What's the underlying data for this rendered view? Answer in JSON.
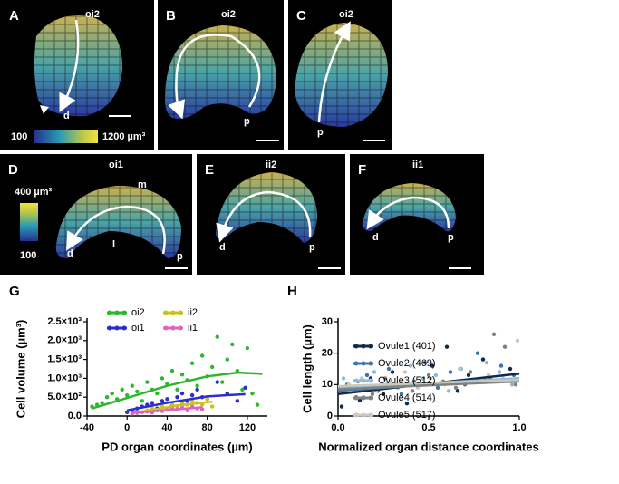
{
  "panels": {
    "A": {
      "letter": "A",
      "tissue": "oi2",
      "end": "d",
      "scale_min": "100",
      "scale_max": "1200 µm³"
    },
    "B": {
      "letter": "B",
      "tissue": "oi2",
      "end": "p"
    },
    "C": {
      "letter": "C",
      "tissue": "oi2",
      "end": "p"
    },
    "D": {
      "letter": "D",
      "tissue": "oi1",
      "side_m": "m",
      "side_l": "l",
      "start": "d",
      "end": "p",
      "scale_max": "400 µm³",
      "scale_min": "100"
    },
    "E": {
      "letter": "E",
      "tissue": "ii2",
      "start": "d",
      "end": "p"
    },
    "F": {
      "letter": "F",
      "tissue": "ii1",
      "start": "d",
      "end": "p"
    }
  },
  "chart_data": [
    {
      "type": "scatter",
      "panel_label": "G",
      "x_label": "PD organ coordinates (µm)",
      "y_label": "Cell volume (µm³)",
      "xlim": [
        -40,
        140
      ],
      "ylim": [
        0,
        2500
      ],
      "xticks": [
        -40,
        0,
        40,
        80,
        120
      ],
      "yticks": [
        {
          "value": 0,
          "label": "0.0"
        },
        {
          "value": 500,
          "label": "5.0×10²"
        },
        {
          "value": 1000,
          "label": "1.0×10³"
        },
        {
          "value": 1500,
          "label": "1.5×10³"
        },
        {
          "value": 2000,
          "label": "2.0×10³"
        },
        {
          "value": 2500,
          "label": "2.5×10³"
        }
      ],
      "grid": false,
      "legend": "top",
      "series": [
        {
          "name": "oi2",
          "color": "#2fb52f",
          "x": [
            -35,
            -30,
            -25,
            -20,
            -15,
            -10,
            -5,
            0,
            5,
            10,
            15,
            20,
            25,
            30,
            35,
            40,
            45,
            50,
            55,
            60,
            65,
            70,
            75,
            80,
            85,
            90,
            95,
            100,
            105,
            110,
            115,
            120,
            125,
            130
          ],
          "values": [
            250,
            300,
            350,
            500,
            600,
            450,
            700,
            550,
            800,
            650,
            400,
            900,
            700,
            600,
            1000,
            850,
            1200,
            700,
            1100,
            950,
            1400,
            800,
            1600,
            1050,
            1300,
            2100,
            900,
            1500,
            1900,
            1200,
            700,
            1800,
            600,
            300
          ],
          "fit_x": [
            -35,
            0,
            40,
            80,
            110,
            135
          ],
          "fit_y": [
            200,
            480,
            800,
            1050,
            1150,
            1120
          ]
        },
        {
          "name": "oi1",
          "color": "#2c2ccf",
          "x": [
            0,
            5,
            10,
            15,
            20,
            25,
            30,
            35,
            40,
            45,
            50,
            55,
            60,
            65,
            70,
            75,
            80,
            90,
            100,
            110,
            118
          ],
          "values": [
            100,
            150,
            200,
            250,
            300,
            350,
            200,
            400,
            450,
            300,
            500,
            600,
            400,
            550,
            700,
            500,
            450,
            900,
            600,
            400,
            750
          ],
          "fit_x": [
            0,
            40,
            80,
            118
          ],
          "fit_y": [
            150,
            350,
            520,
            580
          ]
        },
        {
          "name": "ii2",
          "color": "#c9c21c",
          "x": [
            15,
            20,
            25,
            30,
            35,
            40,
            45,
            50,
            55,
            60,
            65,
            70,
            75,
            80,
            85
          ],
          "values": [
            100,
            150,
            200,
            150,
            250,
            200,
            300,
            250,
            350,
            300,
            400,
            350,
            300,
            450,
            250
          ],
          "fit_x": [
            15,
            50,
            85
          ],
          "fit_y": [
            120,
            280,
            380
          ]
        },
        {
          "name": "ii1",
          "color": "#e062c2",
          "x": [
            5,
            10,
            15,
            20,
            25,
            30,
            35,
            40,
            45,
            50,
            55,
            60,
            65,
            70,
            75
          ],
          "values": [
            60,
            80,
            100,
            120,
            90,
            150,
            130,
            170,
            200,
            180,
            220,
            150,
            250,
            200,
            180
          ],
          "fit_x": [
            5,
            40,
            75
          ],
          "fit_y": [
            80,
            160,
            230
          ]
        }
      ]
    },
    {
      "type": "scatter",
      "panel_label": "H",
      "x_label": "Normalized organ distance coordinates",
      "y_label": "Cell length (µm)",
      "xlim": [
        0,
        1
      ],
      "ylim": [
        0,
        30
      ],
      "xticks": [
        {
          "value": 0,
          "label": "0.0"
        },
        0.5,
        {
          "value": 1,
          "label": "1.0"
        }
      ],
      "yticks": [
        0,
        10,
        20,
        30
      ],
      "grid": false,
      "legend": "right",
      "series": [
        {
          "name": "Ovule1 (401)",
          "color": "#0e2b4b",
          "x": [
            0.02,
            0.08,
            0.12,
            0.18,
            0.25,
            0.3,
            0.38,
            0.45,
            0.52,
            0.6,
            0.66,
            0.72,
            0.8,
            0.88,
            0.95
          ],
          "values": [
            3,
            9,
            5,
            12,
            7,
            14,
            4,
            10,
            16,
            22,
            8,
            13,
            18,
            11,
            15
          ],
          "fit_x": [
            0,
            1
          ],
          "fit_y": [
            7,
            13.5
          ]
        },
        {
          "name": "Ovule2 (469)",
          "color": "#3e74a9",
          "x": [
            0.05,
            0.1,
            0.16,
            0.22,
            0.28,
            0.35,
            0.42,
            0.48,
            0.55,
            0.62,
            0.7,
            0.77,
            0.84,
            0.9,
            0.97
          ],
          "values": [
            10,
            6,
            13,
            8,
            15,
            7,
            11,
            17,
            9,
            14,
            10,
            20,
            12,
            16,
            13
          ],
          "fit_x": [
            0,
            1
          ],
          "fit_y": [
            8,
            12
          ]
        },
        {
          "name": "Ovule3 (512)",
          "color": "#8cb9dd",
          "x": [
            0.03,
            0.09,
            0.14,
            0.2,
            0.27,
            0.33,
            0.4,
            0.47,
            0.54,
            0.61,
            0.68,
            0.75,
            0.82,
            0.89,
            0.96
          ],
          "values": [
            12,
            8,
            6,
            14,
            10,
            9,
            16,
            12,
            13,
            8,
            15,
            11,
            17,
            14,
            10
          ],
          "fit_x": [
            0,
            1
          ],
          "fit_y": [
            9,
            12
          ]
        },
        {
          "name": "Ovule4 (514)",
          "color": "#808080",
          "x": [
            0.04,
            0.11,
            0.19,
            0.26,
            0.34,
            0.41,
            0.5,
            0.58,
            0.65,
            0.73,
            0.81,
            0.86,
            0.92,
            0.98
          ],
          "values": [
            9,
            11,
            7,
            12,
            10,
            8,
            13,
            11,
            9,
            14,
            12,
            26,
            22,
            10
          ],
          "fit_x": [
            0,
            1
          ],
          "fit_y": [
            8.5,
            11
          ]
        },
        {
          "name": "Ovule5 (517)",
          "color": "#cbc8ba",
          "x": [
            0.06,
            0.13,
            0.21,
            0.29,
            0.37,
            0.44,
            0.51,
            0.59,
            0.67,
            0.74,
            0.83,
            0.91,
            0.99
          ],
          "values": [
            10,
            12,
            8,
            11,
            14,
            9,
            12,
            10,
            15,
            11,
            13,
            12,
            24
          ],
          "fit_x": [
            0,
            1
          ],
          "fit_y": [
            9.5,
            11.5
          ]
        }
      ]
    }
  ]
}
